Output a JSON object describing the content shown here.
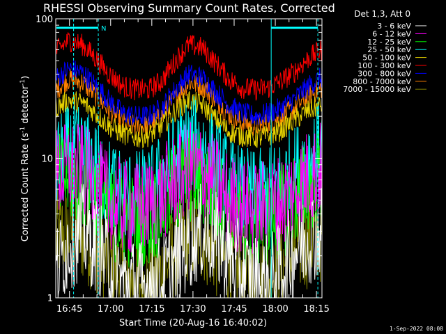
{
  "chart_data": {
    "type": "line",
    "title": "RHESSI Observing Summary Count Rates, Corrected",
    "ylabel_parts": [
      "Corrected Count Rate (s",
      "-1",
      " detector",
      "-1",
      ")"
    ],
    "xlabel": "Start Time (20-Aug-16 16:40:02)",
    "y_scale": "log",
    "ylim": [
      1,
      100
    ],
    "y_ticks": [
      {
        "value": 1,
        "label": "1"
      },
      {
        "value": 10,
        "label": "10"
      },
      {
        "value": 100,
        "label": "100"
      }
    ],
    "x_start_minutes": 0,
    "x_end_minutes": 97,
    "x_ticks": [
      {
        "minute": 5,
        "label": "16:45"
      },
      {
        "minute": 20,
        "label": "17:00"
      },
      {
        "minute": 35,
        "label": "17:15"
      },
      {
        "minute": 50,
        "label": "17:30"
      },
      {
        "minute": 65,
        "label": "17:45"
      },
      {
        "minute": 80,
        "label": "18:00"
      },
      {
        "minute": 95,
        "label": "18:15"
      }
    ],
    "legend_header": "Det 1,3, Att 0",
    "legend_placement": "top-right, outside plot",
    "series": [
      {
        "name": "3 - 6 keV",
        "color": "#ffffff",
        "values": [
          1.5,
          2.5,
          3.0,
          2.4,
          1.8,
          1.3,
          1.2,
          1.2,
          1.3,
          1.8,
          2.5,
          3.0,
          2.6,
          2.0,
          1.5,
          1.3,
          1.3,
          1.6,
          2.2,
          2.8,
          3.0
        ]
      },
      {
        "name": "6 - 12 keV",
        "color": "#ff00ff",
        "values": [
          7.5,
          8.5,
          8.0,
          6.5,
          5.0,
          4.5,
          4.3,
          4.5,
          5.5,
          7.0,
          8.5,
          8.0,
          6.5,
          5.0,
          4.5,
          4.3,
          4.5,
          5.0,
          6.0,
          7.5,
          8.5
        ]
      },
      {
        "name": "12 - 25 keV",
        "color": "#00ff00",
        "values": [
          6.5,
          7.5,
          7.0,
          5.5,
          4.2,
          3.6,
          3.5,
          3.7,
          4.5,
          6.0,
          7.5,
          7.0,
          5.5,
          4.2,
          3.6,
          3.5,
          3.6,
          4.2,
          5.2,
          6.5,
          7.5
        ]
      },
      {
        "name": "25 - 50 keV",
        "color": "#00ffff",
        "values": [
          9.0,
          11.0,
          10.5,
          8.5,
          6.5,
          5.5,
          5.2,
          5.5,
          7.0,
          10.0,
          13.0,
          12.0,
          9.0,
          6.5,
          5.5,
          5.2,
          5.5,
          6.5,
          8.0,
          10.0,
          11.5
        ]
      },
      {
        "name": "50 - 100 keV",
        "color": "#e6d200",
        "values": [
          23,
          26,
          25,
          21,
          17,
          15,
          14,
          14.5,
          17,
          22,
          26,
          24,
          19,
          15.5,
          14.5,
          14,
          14.5,
          16,
          19,
          22,
          24
        ]
      },
      {
        "name": "100 - 300 keV",
        "color": "#ff0000",
        "values": [
          58,
          70,
          65,
          52,
          40,
          33,
          31,
          31,
          36,
          50,
          65,
          62,
          48,
          37,
          32,
          31,
          32,
          36,
          42,
          52,
          60
        ]
      },
      {
        "name": "300 - 800 keV",
        "color": "#0000ff",
        "values": [
          37,
          44,
          41,
          33,
          26,
          21,
          20,
          20,
          23,
          31,
          40,
          38,
          30,
          24,
          21,
          20,
          21,
          23,
          27,
          33,
          38
        ]
      },
      {
        "name": "800 - 7000 keV",
        "color": "#ff8000",
        "values": [
          31,
          37,
          35,
          28,
          22,
          18,
          17,
          17,
          20,
          27,
          35,
          33,
          26,
          20.5,
          18,
          17,
          18,
          20,
          23,
          28,
          32
        ]
      },
      {
        "name": "7000 - 15000 keV",
        "color": "#808000",
        "values": [
          2.7,
          3.0,
          2.8,
          2.4,
          1.7,
          1.4,
          1.3,
          1.3,
          1.5,
          2.2,
          2.9,
          2.8,
          2.2,
          1.7,
          1.4,
          1.3,
          1.4,
          1.7,
          2.2,
          2.6,
          2.8
        ]
      }
    ],
    "annotations": [
      {
        "label": "N",
        "color": "#00ffff"
      }
    ],
    "footer_timestamp": "1-Sep-2022 08:08"
  }
}
